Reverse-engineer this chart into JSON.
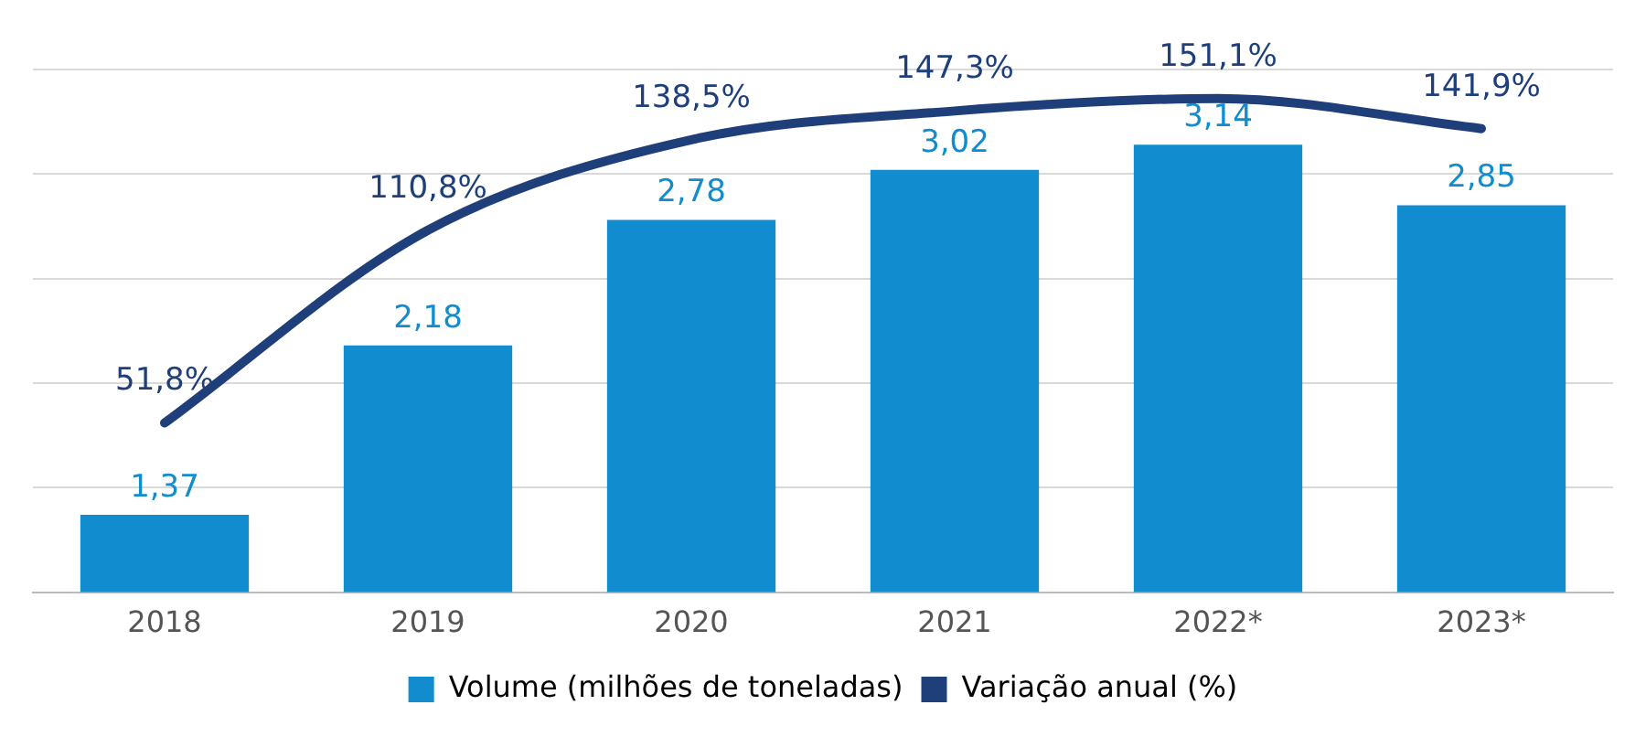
{
  "chart_data": {
    "type": "bar",
    "categories": [
      "2018",
      "2019",
      "2020",
      "2021",
      "2022*",
      "2023*"
    ],
    "series": [
      {
        "name": "Volume (milhões de toneladas)",
        "color": "#118dcf",
        "values": [
          1.37,
          2.18,
          2.78,
          3.02,
          3.14,
          2.85
        ],
        "value_labels": [
          "1,37",
          "2,18",
          "2,78",
          "3,02",
          "3,14",
          "2,85"
        ]
      },
      {
        "name": "Variação anual (%)",
        "type": "line",
        "axis": "y2",
        "color": "#1f3f7a",
        "values": [
          51.8,
          110.8,
          138.5,
          147.3,
          151.1,
          141.9
        ],
        "value_labels": [
          "51,8%",
          "110,8%",
          "138,5%",
          "147,3%",
          "151,1%",
          "141,9%"
        ]
      }
    ],
    "ylim": [
      1,
      3.5
    ],
    "yticks": [
      {
        "value": 1,
        "label": null
      },
      {
        "value": 1.5,
        "label": null
      },
      {
        "value": 2,
        "label": null
      },
      {
        "value": 2.5,
        "label": null
      },
      {
        "value": 3,
        "label": null
      },
      {
        "value": 3.5,
        "label": null
      }
    ],
    "y2lim": [
      0,
      160
    ],
    "tick_labels": "x",
    "grid": "y",
    "legend": "bottom",
    "marker": "none",
    "line_style": "solid"
  }
}
